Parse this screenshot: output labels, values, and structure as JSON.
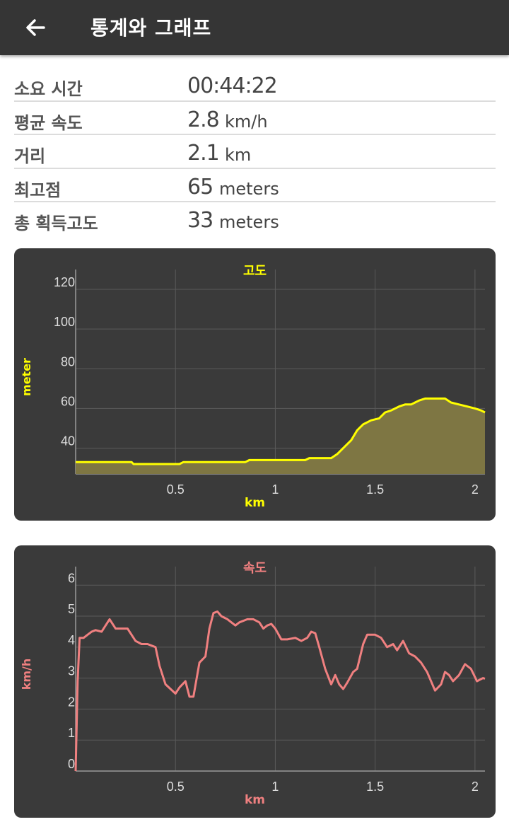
{
  "header": {
    "title": "통계와 그래프",
    "back_icon": "arrow-left-icon"
  },
  "stats": [
    {
      "label": "소요 시간",
      "value": "00:44:22",
      "unit": ""
    },
    {
      "label": "평균 속도",
      "value": "2.8",
      "unit": "km/h"
    },
    {
      "label": "거리",
      "value": "2.1",
      "unit": "km"
    },
    {
      "label": "최고점",
      "value": "65",
      "unit": "meters"
    },
    {
      "label": "총 획득고도",
      "value": "33",
      "unit": "meters"
    }
  ],
  "colors": {
    "appbar": "#353535",
    "card": "#3a3a3a",
    "elevation": "#ffff00",
    "elevation_fill": "#7e7643",
    "speed": "#f08080",
    "grid": "#5a5a5a",
    "tick": "#dddddd"
  },
  "chart_data": [
    {
      "type": "area",
      "title": "고도",
      "xlabel": "km",
      "ylabel": "meter",
      "xlim": [
        0,
        2.05
      ],
      "ylim": [
        27,
        130
      ],
      "xticks": [
        "0.5",
        "1",
        "1.5",
        "2"
      ],
      "yticks": [
        "40",
        "60",
        "80",
        "100",
        "120"
      ],
      "grid": true,
      "series": [
        {
          "values_x": [
            0,
            0.28,
            0.29,
            0.52,
            0.54,
            0.85,
            0.87,
            1.15,
            1.17,
            1.28,
            1.31,
            1.35,
            1.38,
            1.41,
            1.44,
            1.48,
            1.52,
            1.55,
            1.58,
            1.62,
            1.65,
            1.68,
            1.7,
            1.72,
            1.75,
            1.8,
            1.85,
            1.88,
            1.92,
            1.96,
            2.0,
            2.03,
            2.05
          ],
          "values_y": [
            33,
            33,
            32,
            32,
            33,
            33,
            34,
            34,
            35,
            35,
            37,
            41,
            44,
            49,
            52,
            54,
            55,
            58,
            59,
            61,
            62,
            62,
            63,
            64,
            65,
            65,
            65,
            63,
            62,
            61,
            60,
            59,
            58
          ]
        }
      ]
    },
    {
      "type": "line",
      "title": "속도",
      "xlabel": "km",
      "ylabel": "km/h",
      "xlim": [
        0,
        2.05
      ],
      "ylim": [
        0,
        6.6
      ],
      "xticks": [
        "0.5",
        "1",
        "1.5",
        "2"
      ],
      "yticks": [
        "0",
        "1",
        "2",
        "3",
        "4",
        "5",
        "6"
      ],
      "grid": true,
      "series": [
        {
          "values_x": [
            0,
            0.01,
            0.02,
            0.04,
            0.06,
            0.08,
            0.1,
            0.13,
            0.15,
            0.17,
            0.2,
            0.22,
            0.26,
            0.3,
            0.33,
            0.36,
            0.4,
            0.42,
            0.45,
            0.5,
            0.52,
            0.55,
            0.57,
            0.59,
            0.62,
            0.65,
            0.67,
            0.69,
            0.71,
            0.73,
            0.76,
            0.78,
            0.8,
            0.82,
            0.86,
            0.89,
            0.92,
            0.94,
            0.96,
            0.98,
            1.0,
            1.03,
            1.06,
            1.1,
            1.13,
            1.16,
            1.18,
            1.2,
            1.22,
            1.25,
            1.28,
            1.3,
            1.32,
            1.34,
            1.36,
            1.39,
            1.41,
            1.44,
            1.46,
            1.48,
            1.5,
            1.53,
            1.56,
            1.59,
            1.61,
            1.64,
            1.67,
            1.7,
            1.73,
            1.76,
            1.8,
            1.83,
            1.85,
            1.87,
            1.89,
            1.92,
            1.95,
            1.98,
            2.01,
            2.04,
            2.05
          ],
          "values_y": [
            0,
            2.9,
            4.3,
            4.3,
            4.4,
            4.5,
            4.55,
            4.5,
            4.7,
            4.9,
            4.6,
            4.6,
            4.6,
            4.2,
            4.1,
            4.1,
            4.0,
            3.4,
            2.8,
            2.5,
            2.7,
            2.9,
            2.4,
            2.4,
            3.5,
            3.7,
            4.6,
            5.1,
            5.15,
            5.0,
            4.9,
            4.8,
            4.7,
            4.8,
            4.9,
            4.9,
            4.8,
            4.6,
            4.7,
            4.75,
            4.6,
            4.25,
            4.25,
            4.3,
            4.2,
            4.3,
            4.5,
            4.45,
            4.0,
            3.3,
            2.8,
            3.1,
            2.8,
            2.65,
            2.85,
            3.2,
            3.3,
            4.1,
            4.4,
            4.4,
            4.4,
            4.3,
            4.0,
            4.1,
            3.9,
            4.2,
            3.8,
            3.7,
            3.5,
            3.2,
            2.6,
            2.8,
            3.2,
            3.1,
            2.9,
            3.1,
            3.45,
            3.3,
            2.9,
            3.0,
            2.98
          ]
        }
      ]
    }
  ]
}
